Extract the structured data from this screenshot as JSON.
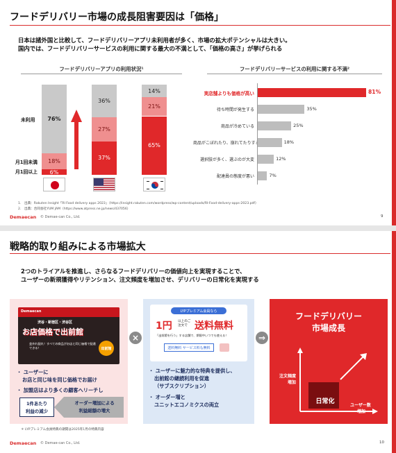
{
  "slide1": {
    "title": "フードデリバリー市場の成長阻害要因は「価格」",
    "lead_line1": "日本は諸外国と比較して、フードデリバリーアプリ未利用者が多く、市場の拡大ポテンシャルは大きい。",
    "lead_line2": "国内では、フードデリバリーサービスの利用に関する最大の不満として、「価格の高さ」が挙げられる",
    "left_heading": "フードデリバリーアプリの利用状況¹",
    "right_heading": "フードデリバリーサービスの利用に関する不満²",
    "row_labels": {
      "unused": "未利用",
      "under_monthly": "月1回未満",
      "monthly_plus": "月1回以上"
    },
    "usage_chart": {
      "type": "bar",
      "categories": [
        "日本",
        "米国",
        "韓国"
      ],
      "series": [
        {
          "name": "月1回以上",
          "values": [
            6,
            37,
            65
          ]
        },
        {
          "name": "月1回未満",
          "values": [
            18,
            27,
            21
          ]
        },
        {
          "name": "未利用",
          "values": [
            76,
            36,
            14
          ]
        }
      ],
      "labels": [
        [
          "6%",
          "18%",
          "76%"
        ],
        [
          "37%",
          "27%",
          "36%"
        ],
        [
          "65%",
          "21%",
          "14%"
        ]
      ],
      "colors": [
        "#e0282a",
        "#ef8f8f",
        "#c9c9c9"
      ]
    },
    "complaints_chart": {
      "type": "bar",
      "categories": [
        "実店舗よりも価格が高い",
        "待ち時間が発生する",
        "商品が冷めている",
        "商品がこぼれたり、崩れてたりする",
        "選択肢が多く、選ぶのが大変",
        "配達員の態度が悪い"
      ],
      "values": [
        81,
        35,
        25,
        18,
        12,
        7
      ],
      "labels": [
        "81%",
        "35%",
        "25%",
        "18%",
        "12%",
        "7%"
      ],
      "highlight_color": "#e0282a",
      "bar_color": "#bdbdbd"
    },
    "note1": "1.　出典：Rakuten Insight「RI Food delivery apps 2023」（https://insight.rakuten.com/wordpress/wp-content/uploads/RI-Food-delivery-apps-2023.pdf）",
    "note2": "2.　出典：合同会社YUM JAM（https://www.atpress.ne.jp/news/437056）",
    "logo": "Demaecan",
    "copyright": "© Demae-can Co., Ltd.",
    "page": "9"
  },
  "slide2": {
    "title": "戦略的取り組みによる市場拡大",
    "lead_line1": "2つのトライアルを推進し、さらなるフードデリバリーの価値向上を実現することで、",
    "lead_line2": "ユーザーの新規獲得やリテンション、注文頻度を増加させ、デリバリーの日常化を実現する",
    "panel1": {
      "banner_small": "渋谷・新宿区・渋谷区",
      "banner_main": "お店価格で出前館",
      "banner_sub": "並外れ配れ！すべての商品がお店と同じ価格で配達できる！",
      "badge": "出前館",
      "bullet1_line1": "・ ユーザーに",
      "bullet1_line2": "お店と同じ味を同じ価格でお届け",
      "bullet2": "・ 加盟店はより多くの顧客へリーチし",
      "left_box_line1": "1件あたり",
      "left_box_line2": "利益の減少",
      "arrow_text_line1": "オーダー増加による",
      "arrow_text_line2": "利益総額の増大"
    },
    "op1": "×",
    "panel2": {
      "pill": "LYPプレミアム会員なら",
      "big_left": "1円",
      "big_left_sub": "以上のご注文で",
      "big_right": "送料無料",
      "desc": "「出前館を行う」する店舗で、期限中いつでも使える！",
      "small_tag": "送料無料 サービス料も無料",
      "bullet1_line1": "・ ユーザーに魅力的な特典を提供し、",
      "bullet1_line2": "出前館の継続利用を促進",
      "bullet1_line3": "（サブスクリプション）",
      "bullet2_line1": "・ オーダー増と",
      "bullet2_line2": "ユニットエコノミクスの両立"
    },
    "op2": "⇒",
    "panel3": {
      "title_line1": "フードデリバリー",
      "title_line2": "市場成長",
      "center": "日常化",
      "y_label_line1": "注文頻度",
      "y_label_line2": "増加",
      "x_label_line1": "ユーザー数",
      "x_label_line2": "増加"
    },
    "footnote": "＊ LYPプレミアム会員特典の期間は2025年1月の特典内容",
    "logo": "Demaecan",
    "copyright": "© Demae-can Co., Ltd.",
    "page": "10"
  }
}
